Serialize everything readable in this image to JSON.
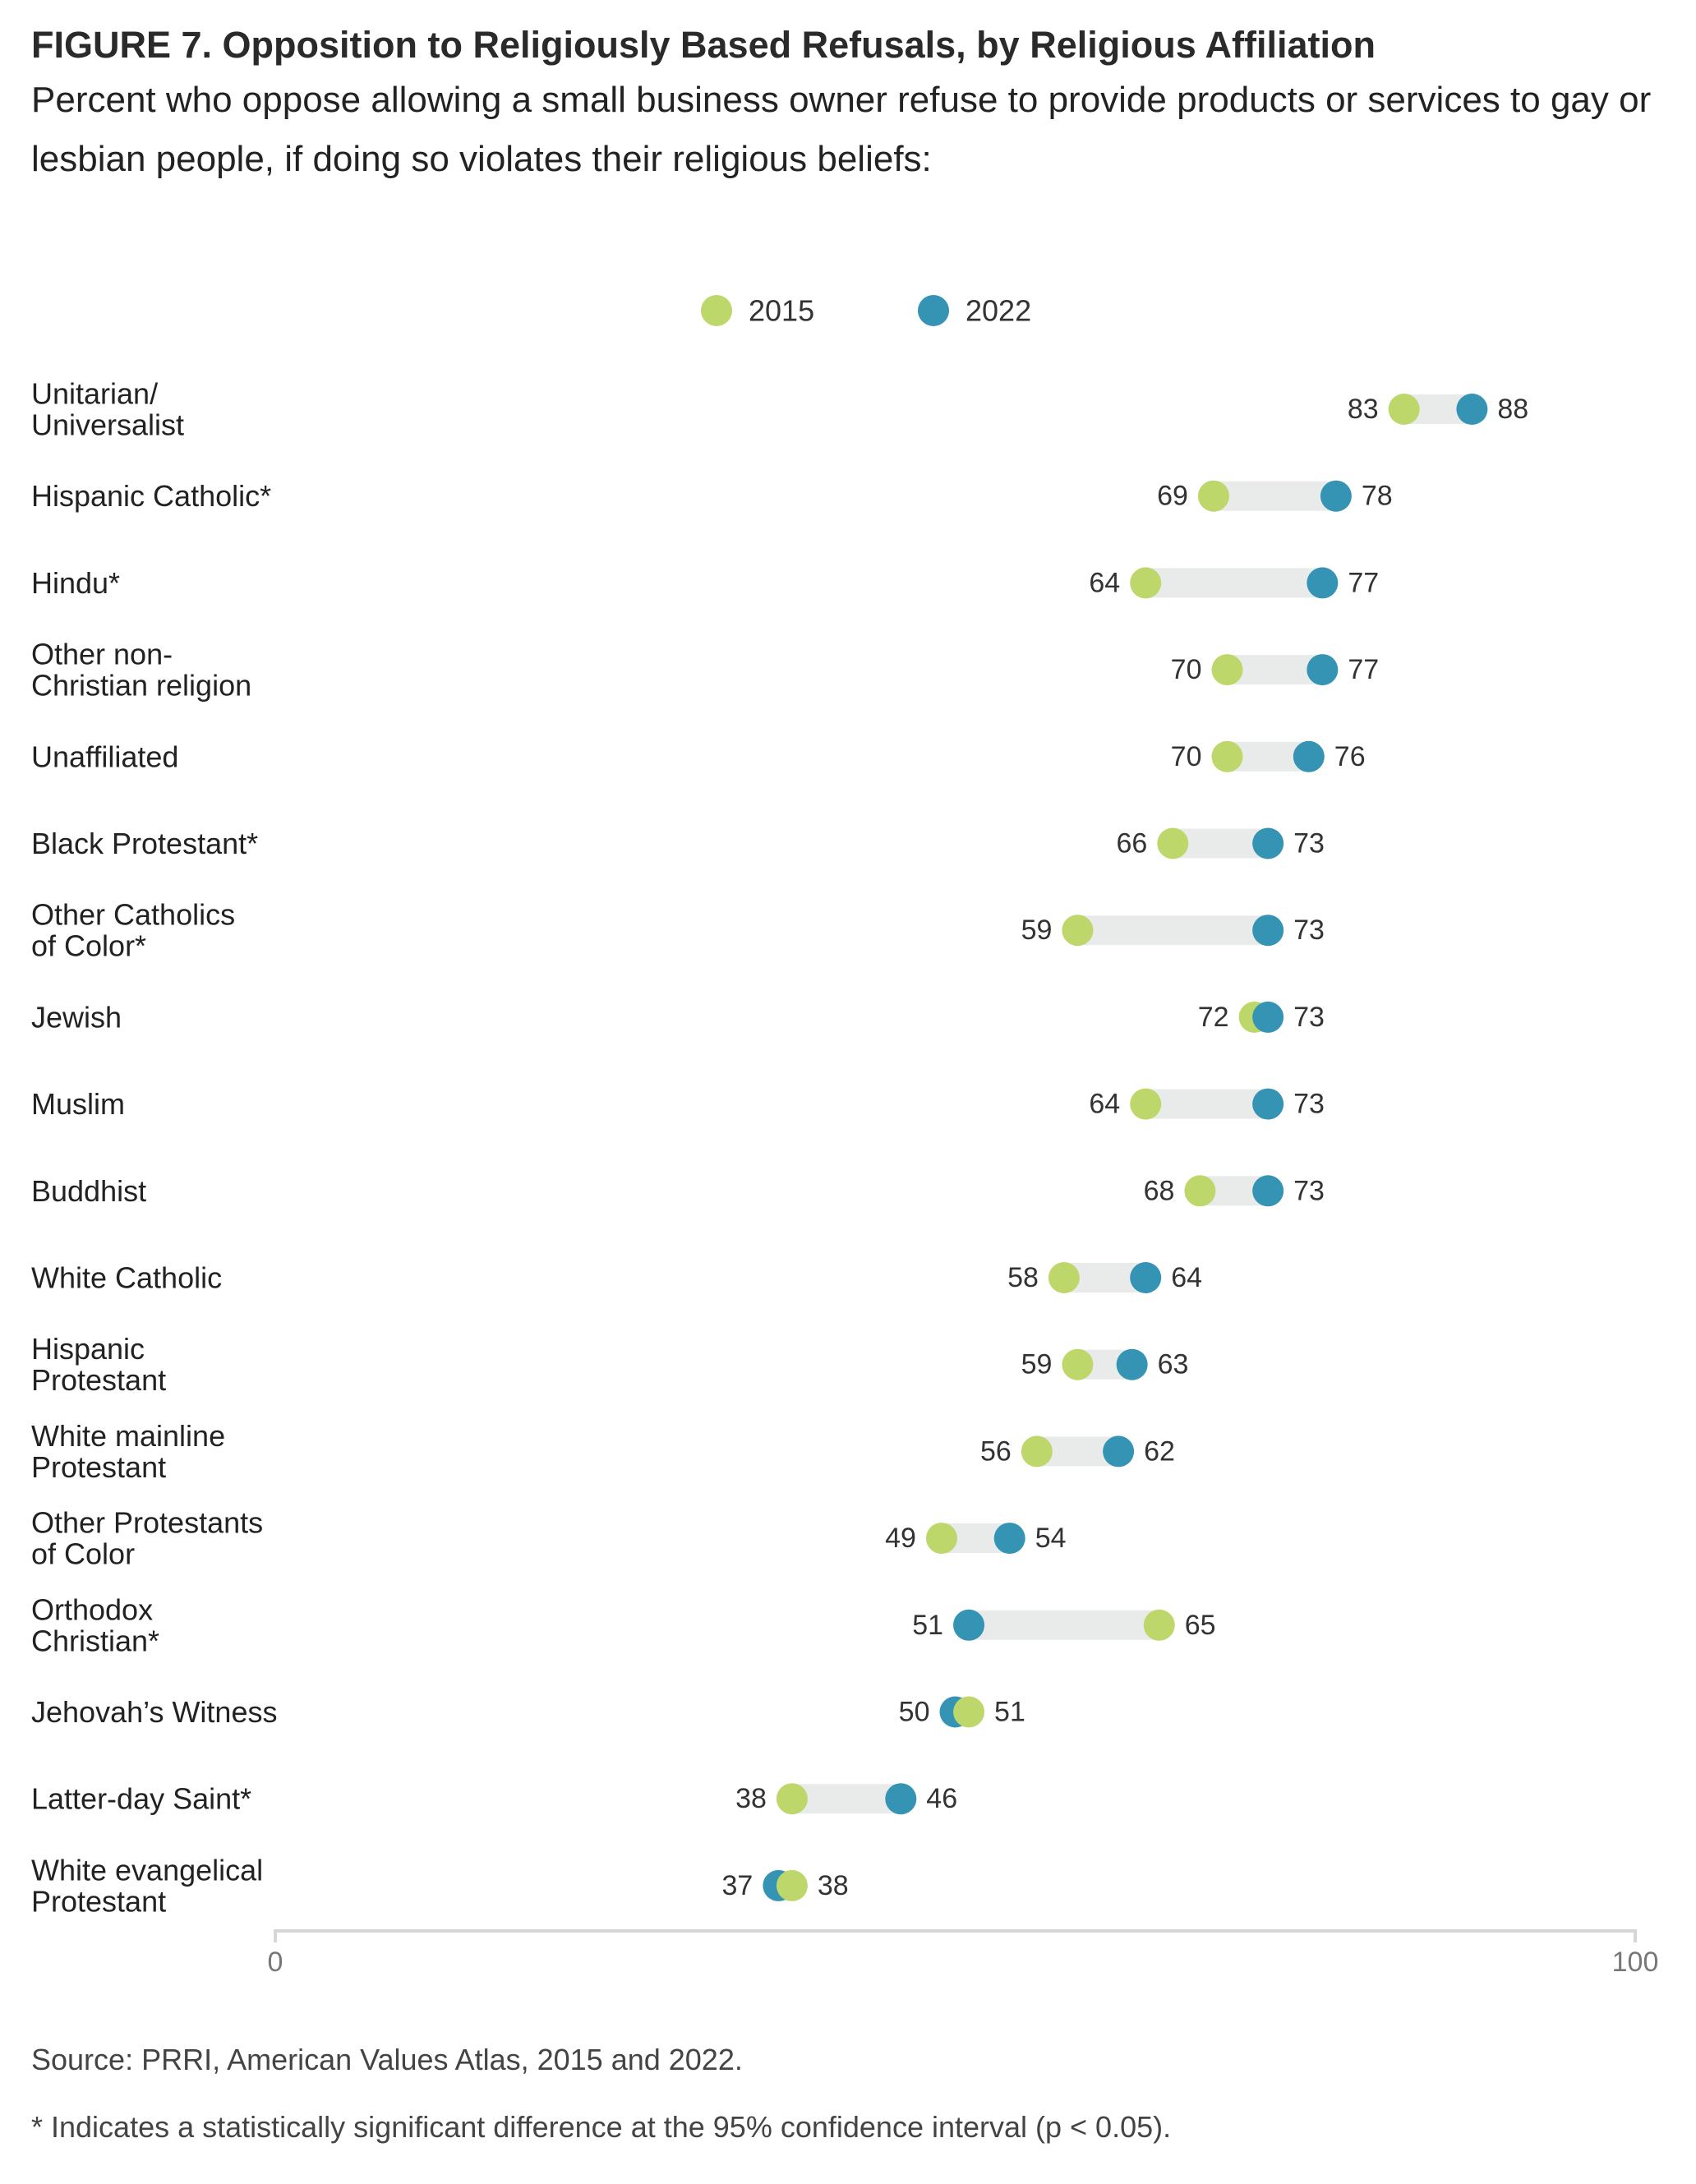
{
  "header": {
    "title": "FIGURE 7.  Opposition to Religiously Based Refusals, by Religious Affiliation",
    "subtitle": "Percent who oppose allowing a small business owner refuse to provide products or services to gay or lesbian people, if doing so violates their religious beliefs:"
  },
  "chart_data": {
    "type": "dumbbell",
    "xlim": [
      0,
      100
    ],
    "x_ticks": [
      "0",
      "100"
    ],
    "legend": {
      "placement": "top-center",
      "items": [
        {
          "name": "2015",
          "color": "#bed76a"
        },
        {
          "name": "2022",
          "color": "#3593b3"
        }
      ]
    },
    "colors": {
      "track": "#e9ebea",
      "axis": "#d5d7d6",
      "value_text": "#333333"
    },
    "categories": [
      "Unitarian/ Universalist",
      "Hispanic Catholic*",
      "Hindu*",
      "Other non- Christian religion",
      "Unaffiliated",
      "Black Protestant*",
      "Other Catholics of Color*",
      "Jewish",
      "Muslim",
      "Buddhist",
      "White Catholic",
      "Hispanic Protestant",
      "White mainline Protestant",
      "Other Protestants of Color",
      "Orthodox Christian*",
      "Jehovah's Witness",
      "Latter-day Saint*",
      "White evangelical Protestant"
    ],
    "category_lines": [
      [
        "Unitarian/",
        "Universalist"
      ],
      [
        "Hispanic Catholic*"
      ],
      [
        "Hindu*"
      ],
      [
        "Other non-",
        "Christian religion"
      ],
      [
        "Unaffiliated"
      ],
      [
        "Black Protestant*"
      ],
      [
        "Other Catholics",
        "of Color*"
      ],
      [
        "Jewish"
      ],
      [
        "Muslim"
      ],
      [
        "Buddhist"
      ],
      [
        "White Catholic"
      ],
      [
        "Hispanic",
        "Protestant"
      ],
      [
        "White mainline",
        "Protestant"
      ],
      [
        "Other Protestants",
        "of Color"
      ],
      [
        "Orthodox",
        "Christian*"
      ],
      [
        "Jehovah’s Witness"
      ],
      [
        "Latter-day Saint*"
      ],
      [
        "White evangelical",
        "Protestant"
      ]
    ],
    "series": [
      {
        "name": "2015",
        "values": [
          83,
          69,
          64,
          70,
          70,
          66,
          59,
          72,
          64,
          68,
          58,
          59,
          56,
          49,
          65,
          51,
          38,
          38
        ]
      },
      {
        "name": "2022",
        "values": [
          88,
          78,
          77,
          77,
          76,
          73,
          73,
          73,
          73,
          73,
          64,
          63,
          62,
          54,
          51,
          50,
          46,
          37
        ]
      }
    ]
  },
  "footer": {
    "source": "Source: PRRI, American Values Atlas, 2015 and 2022.",
    "note": "* Indicates a statistically significant difference at the 95% confidence interval (p < 0.05)."
  }
}
